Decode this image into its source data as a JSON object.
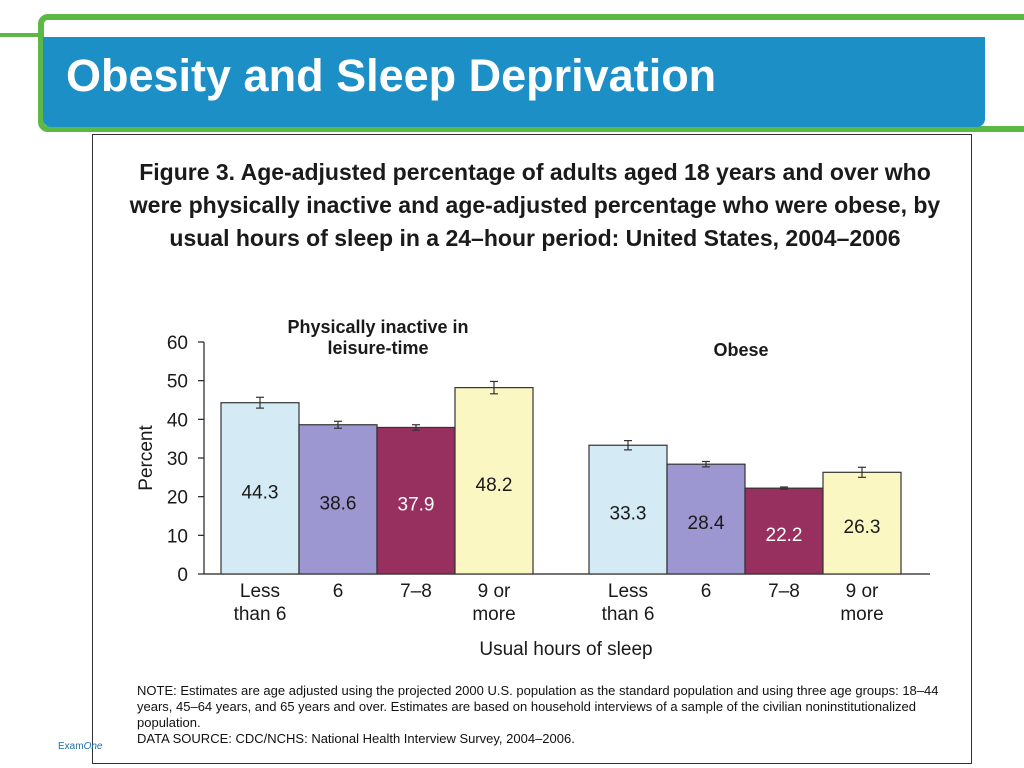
{
  "slide": {
    "title": "Obesity and Sleep Deprivation",
    "logo_text_prefix": "Exam",
    "logo_text_italic": "One"
  },
  "colors": {
    "brand_green": "#5cb946",
    "title_bar": "#1c8fc6"
  },
  "chart_data": {
    "type": "bar",
    "title": "Figure 3. Age-adjusted percentage of adults aged 18 years and over who were physically inactive and age-adjusted percentage who were obese, by usual hours of sleep in a 24–hour period: United States, 2004–2006",
    "xlabel": "Usual hours of sleep",
    "ylabel": "Percent",
    "ylim": [
      0,
      60
    ],
    "yticks": [
      0,
      10,
      20,
      30,
      40,
      50,
      60
    ],
    "grid": false,
    "categories": [
      "Less than 6",
      "6",
      "7–8",
      "9 or more"
    ],
    "category_colors": [
      "#d4eaf4",
      "#9c97d0",
      "#97305e",
      "#fbf7c2"
    ],
    "groups": [
      {
        "name": "Physically inactive in leisure-time",
        "values": [
          44.3,
          38.6,
          37.9,
          48.2
        ],
        "error": [
          1.4,
          0.9,
          0.7,
          1.6
        ],
        "value_labels": [
          "44.3",
          "38.6",
          "37.9",
          "48.2"
        ]
      },
      {
        "name": "Obese",
        "values": [
          33.3,
          28.4,
          22.2,
          26.3
        ],
        "error": [
          1.2,
          0.7,
          0.3,
          1.3
        ],
        "value_labels": [
          "33.3",
          "28.4",
          "22.2",
          "26.3"
        ]
      }
    ],
    "note": "NOTE:  Estimates are age adjusted using the projected 2000 U.S. population as the standard population and using three age groups:  18–44 years, 45–64 years, and 65 years and over.  Estimates are based on household interviews of a sample of the civilian noninstitutionalized population.",
    "source": "DATA SOURCE: CDC/NCHS: National Health Interview Survey, 2004–2006."
  }
}
